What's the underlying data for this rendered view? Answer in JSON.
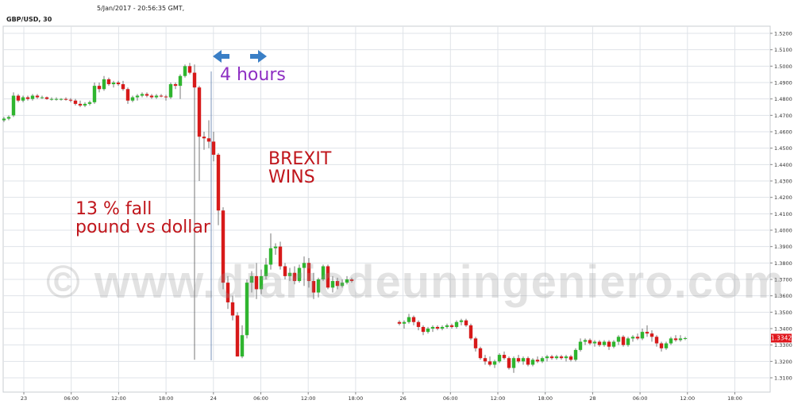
{
  "header": {
    "datetime": "5/Jan/2017 - 20:56:35 GMT,",
    "symbol": "GBP/USD, 30"
  },
  "annotations": {
    "window": "4 hours",
    "event_line1": "BREXIT",
    "event_line2": "WINS",
    "fall_line1": "13 % fall",
    "fall_line2": "pound vs dollar"
  },
  "watermark": "© www.diariodeuningeniero.com",
  "colors": {
    "up": "#2fb52f",
    "down": "#d71a1a",
    "arrow": "#3a7fc6",
    "window_text": "#8e2fc3",
    "annotation_text": "#c0161c",
    "last_price_bg": "#e0161c",
    "grid": "#dfe3e8"
  },
  "icons": {
    "left_arrow": "arrow-left-icon",
    "right_arrow": "arrow-right-icon"
  },
  "last_price": "1.3342",
  "chart_data": {
    "type": "candlestick",
    "title": "GBP/USD, 30",
    "ylim": [
      1.3,
      1.525
    ],
    "y_ticks": [
      "1.3100",
      "1.3200",
      "1.3300",
      "1.3400",
      "1.3500",
      "1.3600",
      "1.3700",
      "1.3800",
      "1.3900",
      "1.4000",
      "1.4100",
      "1.4200",
      "1.4300",
      "1.4400",
      "1.4500",
      "1.4600",
      "1.4700",
      "1.4800",
      "1.4900",
      "1.5000",
      "1.5100",
      "1.5200"
    ],
    "x_ticks": [
      "23",
      "06:00",
      "12:00",
      "18:00",
      "24",
      "06:00",
      "12:00",
      "18:00",
      "26",
      "06:00",
      "12:00",
      "18:00",
      "28",
      "06:00",
      "12:00",
      "18:00"
    ],
    "grid": true,
    "series": [
      {
        "segment": 1,
        "ohlc": [
          [
            1.467,
            1.469,
            1.466,
            1.468
          ],
          [
            1.468,
            1.47,
            1.467,
            1.469
          ],
          [
            1.47,
            1.484,
            1.469,
            1.482
          ],
          [
            1.482,
            1.483,
            1.478,
            1.479
          ],
          [
            1.479,
            1.482,
            1.478,
            1.481
          ],
          [
            1.481,
            1.482,
            1.479,
            1.48
          ],
          [
            1.48,
            1.483,
            1.479,
            1.482
          ],
          [
            1.482,
            1.483,
            1.48,
            1.481
          ],
          [
            1.481,
            1.482,
            1.48,
            1.481
          ],
          [
            1.481,
            1.4815,
            1.4795,
            1.48
          ],
          [
            1.48,
            1.481,
            1.479,
            1.48
          ],
          [
            1.48,
            1.481,
            1.479,
            1.48
          ],
          [
            1.48,
            1.4805,
            1.479,
            1.48
          ],
          [
            1.48,
            1.481,
            1.479,
            1.4795
          ],
          [
            1.4795,
            1.4805,
            1.478,
            1.479
          ],
          [
            1.479,
            1.48,
            1.476,
            1.477
          ],
          [
            1.477,
            1.479,
            1.475,
            1.476
          ],
          [
            1.476,
            1.478,
            1.475,
            1.477
          ],
          [
            1.477,
            1.479,
            1.476,
            1.478
          ],
          [
            1.478,
            1.49,
            1.477,
            1.488
          ],
          [
            1.488,
            1.49,
            1.484,
            1.486
          ],
          [
            1.486,
            1.494,
            1.485,
            1.492
          ],
          [
            1.492,
            1.493,
            1.488,
            1.489
          ],
          [
            1.489,
            1.491,
            1.487,
            1.49
          ],
          [
            1.49,
            1.491,
            1.488,
            1.489
          ],
          [
            1.489,
            1.491,
            1.485,
            1.486
          ],
          [
            1.486,
            1.487,
            1.477,
            1.479
          ],
          [
            1.479,
            1.482,
            1.478,
            1.481
          ],
          [
            1.481,
            1.483,
            1.479,
            1.482
          ],
          [
            1.482,
            1.484,
            1.481,
            1.483
          ],
          [
            1.483,
            1.484,
            1.481,
            1.482
          ],
          [
            1.482,
            1.483,
            1.48,
            1.481
          ],
          [
            1.481,
            1.483,
            1.48,
            1.482
          ],
          [
            1.482,
            1.483,
            1.481,
            1.4815
          ],
          [
            1.4815,
            1.4825,
            1.479,
            1.481
          ],
          [
            1.481,
            1.49,
            1.48,
            1.489
          ],
          [
            1.489,
            1.49,
            1.486,
            1.488
          ],
          [
            1.488,
            1.495,
            1.48,
            1.494
          ],
          [
            1.494,
            1.501,
            1.493,
            1.5
          ],
          [
            1.5,
            1.502,
            1.495,
            1.496
          ],
          [
            1.496,
            1.501,
            1.321,
            1.487
          ],
          [
            1.487,
            1.488,
            1.43,
            1.457
          ],
          [
            1.457,
            1.46,
            1.449,
            1.456
          ],
          [
            1.456,
            1.467,
            1.45,
            1.454
          ],
          [
            1.454,
            1.46,
            1.442,
            1.446
          ],
          [
            1.446,
            1.447,
            1.403,
            1.412
          ],
          [
            1.412,
            1.414,
            1.364,
            1.368
          ],
          [
            1.368,
            1.372,
            1.352,
            1.356
          ],
          [
            1.356,
            1.36,
            1.345,
            1.348
          ],
          [
            1.348,
            1.35,
            1.323,
            1.323
          ],
          [
            1.323,
            1.342,
            1.322,
            1.336
          ],
          [
            1.336,
            1.37,
            1.334,
            1.368
          ],
          [
            1.368,
            1.375,
            1.362,
            1.372
          ],
          [
            1.372,
            1.38,
            1.358,
            1.364
          ],
          [
            1.364,
            1.376,
            1.361,
            1.372
          ],
          [
            1.372,
            1.383,
            1.37,
            1.379
          ],
          [
            1.379,
            1.398,
            1.376,
            1.389
          ],
          [
            1.389,
            1.392,
            1.385,
            1.39
          ],
          [
            1.39,
            1.393,
            1.376,
            1.378
          ],
          [
            1.378,
            1.38,
            1.37,
            1.372
          ],
          [
            1.372,
            1.377,
            1.369,
            1.374
          ],
          [
            1.374,
            1.378,
            1.367,
            1.369
          ],
          [
            1.369,
            1.379,
            1.368,
            1.377
          ],
          [
            1.377,
            1.384,
            1.366,
            1.38
          ],
          [
            1.38,
            1.383,
            1.365,
            1.369
          ],
          [
            1.369,
            1.374,
            1.358,
            1.362
          ],
          [
            1.362,
            1.371,
            1.359,
            1.37
          ],
          [
            1.37,
            1.379,
            1.369,
            1.378
          ],
          [
            1.378,
            1.379,
            1.364,
            1.365
          ],
          [
            1.365,
            1.372,
            1.362,
            1.369
          ],
          [
            1.369,
            1.371,
            1.364,
            1.366
          ],
          [
            1.366,
            1.37,
            1.365,
            1.368
          ],
          [
            1.368,
            1.372,
            1.367,
            1.37
          ],
          [
            1.37,
            1.371,
            1.368,
            1.369
          ]
        ]
      },
      {
        "segment": 2,
        "ohlc": [
          [
            1.344,
            1.345,
            1.342,
            1.343
          ],
          [
            1.343,
            1.345,
            1.34,
            1.344
          ],
          [
            1.344,
            1.349,
            1.343,
            1.347
          ],
          [
            1.347,
            1.348,
            1.342,
            1.344
          ],
          [
            1.344,
            1.345,
            1.339,
            1.341
          ],
          [
            1.341,
            1.342,
            1.336,
            1.338
          ],
          [
            1.338,
            1.341,
            1.337,
            1.34
          ],
          [
            1.34,
            1.342,
            1.338,
            1.341
          ],
          [
            1.341,
            1.342,
            1.339,
            1.34
          ],
          [
            1.34,
            1.342,
            1.339,
            1.341
          ],
          [
            1.341,
            1.343,
            1.34,
            1.342
          ],
          [
            1.342,
            1.343,
            1.34,
            1.341
          ],
          [
            1.341,
            1.345,
            1.34,
            1.344
          ],
          [
            1.344,
            1.346,
            1.342,
            1.345
          ],
          [
            1.345,
            1.346,
            1.341,
            1.342
          ],
          [
            1.342,
            1.343,
            1.333,
            1.334
          ],
          [
            1.334,
            1.335,
            1.326,
            1.328
          ],
          [
            1.328,
            1.329,
            1.321,
            1.322
          ],
          [
            1.322,
            1.324,
            1.318,
            1.32
          ],
          [
            1.32,
            1.323,
            1.317,
            1.318
          ],
          [
            1.318,
            1.321,
            1.316,
            1.32
          ],
          [
            1.32,
            1.325,
            1.319,
            1.324
          ],
          [
            1.324,
            1.326,
            1.321,
            1.322
          ],
          [
            1.322,
            1.323,
            1.315,
            1.316
          ],
          [
            1.316,
            1.323,
            1.313,
            1.322
          ],
          [
            1.322,
            1.324,
            1.319,
            1.32
          ],
          [
            1.32,
            1.323,
            1.318,
            1.322
          ],
          [
            1.322,
            1.323,
            1.317,
            1.318
          ],
          [
            1.318,
            1.322,
            1.317,
            1.321
          ],
          [
            1.321,
            1.323,
            1.319,
            1.32
          ],
          [
            1.32,
            1.323,
            1.319,
            1.322
          ],
          [
            1.322,
            1.324,
            1.32,
            1.323
          ],
          [
            1.323,
            1.324,
            1.321,
            1.322
          ],
          [
            1.322,
            1.324,
            1.321,
            1.323
          ],
          [
            1.323,
            1.324,
            1.321,
            1.322
          ],
          [
            1.322,
            1.324,
            1.32,
            1.323
          ],
          [
            1.323,
            1.324,
            1.32,
            1.321
          ],
          [
            1.321,
            1.328,
            1.32,
            1.327
          ],
          [
            1.327,
            1.334,
            1.326,
            1.332
          ],
          [
            1.332,
            1.334,
            1.33,
            1.333
          ],
          [
            1.333,
            1.334,
            1.33,
            1.331
          ],
          [
            1.331,
            1.333,
            1.329,
            1.332
          ],
          [
            1.332,
            1.333,
            1.329,
            1.33
          ],
          [
            1.33,
            1.333,
            1.329,
            1.332
          ],
          [
            1.332,
            1.333,
            1.327,
            1.329
          ],
          [
            1.329,
            1.333,
            1.328,
            1.332
          ],
          [
            1.332,
            1.336,
            1.33,
            1.335
          ],
          [
            1.335,
            1.336,
            1.329,
            1.33
          ],
          [
            1.33,
            1.335,
            1.329,
            1.334
          ],
          [
            1.334,
            1.336,
            1.332,
            1.335
          ],
          [
            1.335,
            1.337,
            1.333,
            1.334
          ],
          [
            1.334,
            1.34,
            1.333,
            1.338
          ],
          [
            1.338,
            1.342,
            1.335,
            1.337
          ],
          [
            1.337,
            1.339,
            1.332,
            1.335
          ],
          [
            1.335,
            1.336,
            1.329,
            1.331
          ],
          [
            1.331,
            1.332,
            1.326,
            1.328
          ],
          [
            1.328,
            1.332,
            1.327,
            1.331
          ],
          [
            1.331,
            1.335,
            1.33,
            1.334
          ],
          [
            1.334,
            1.336,
            1.332,
            1.333
          ],
          [
            1.333,
            1.336,
            1.332,
            1.334
          ],
          [
            1.334,
            1.335,
            1.333,
            1.3342
          ]
        ]
      }
    ]
  }
}
